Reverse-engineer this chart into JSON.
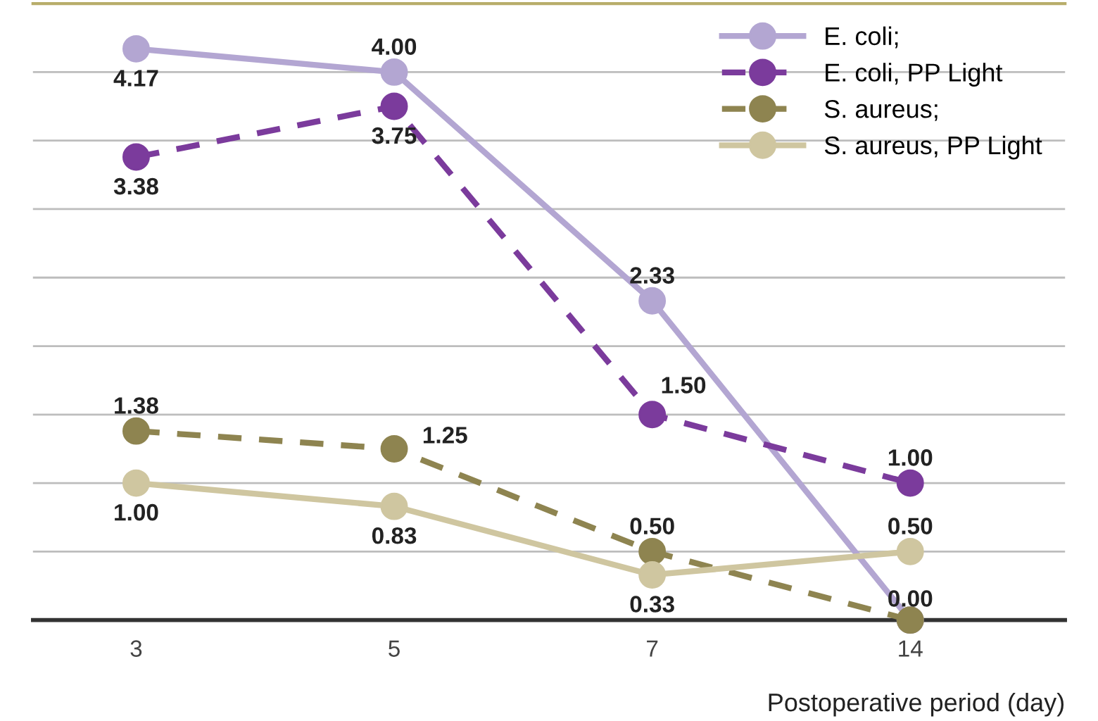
{
  "chart_data": {
    "type": "line",
    "categories": [
      "3",
      "5",
      "7",
      "14"
    ],
    "series": [
      {
        "name": "E. coli;",
        "color": "#b3a6d2",
        "line_style": "solid",
        "values": [
          4.17,
          4.0,
          2.33,
          0.0
        ],
        "value_labels": [
          "4.17",
          "4.00",
          "2.33",
          "0.00"
        ]
      },
      {
        "name": "E. coli, PP Light",
        "color": "#7b3b9c",
        "line_style": "dashed",
        "values": [
          3.38,
          3.75,
          1.5,
          1.0
        ],
        "value_labels": [
          "3.38",
          "3.75",
          "1.50",
          "1.00"
        ]
      },
      {
        "name": "S. aureus;",
        "color": "#8e8450",
        "line_style": "dashed",
        "values": [
          1.38,
          1.25,
          0.5,
          0.0
        ],
        "value_labels": [
          "1.38",
          "1.25",
          "0.50",
          null
        ]
      },
      {
        "name": "S. aureus, PP Light",
        "color": "#cfc6a0",
        "line_style": "solid",
        "values": [
          1.0,
          0.83,
          0.33,
          0.5
        ],
        "value_labels": [
          "1.00",
          "0.83",
          "0.33",
          "0.50"
        ]
      }
    ],
    "xlabel": "Postoperative period (day)",
    "relative": false,
    "ylim": [
      0,
      4.5
    ],
    "yticks": [
      {
        "value": 0.5,
        "label": null
      },
      {
        "value": 1.0,
        "label": null
      },
      {
        "value": 1.5,
        "label": null
      },
      {
        "value": 2.0,
        "label": null
      },
      {
        "value": 2.5,
        "label": null
      },
      {
        "value": 3.0,
        "label": null
      },
      {
        "value": 3.5,
        "label": null
      },
      {
        "value": 4.0,
        "label": null
      }
    ],
    "tick_labels": "x",
    "grid": "y",
    "legend": "top right",
    "marker": "circle"
  }
}
